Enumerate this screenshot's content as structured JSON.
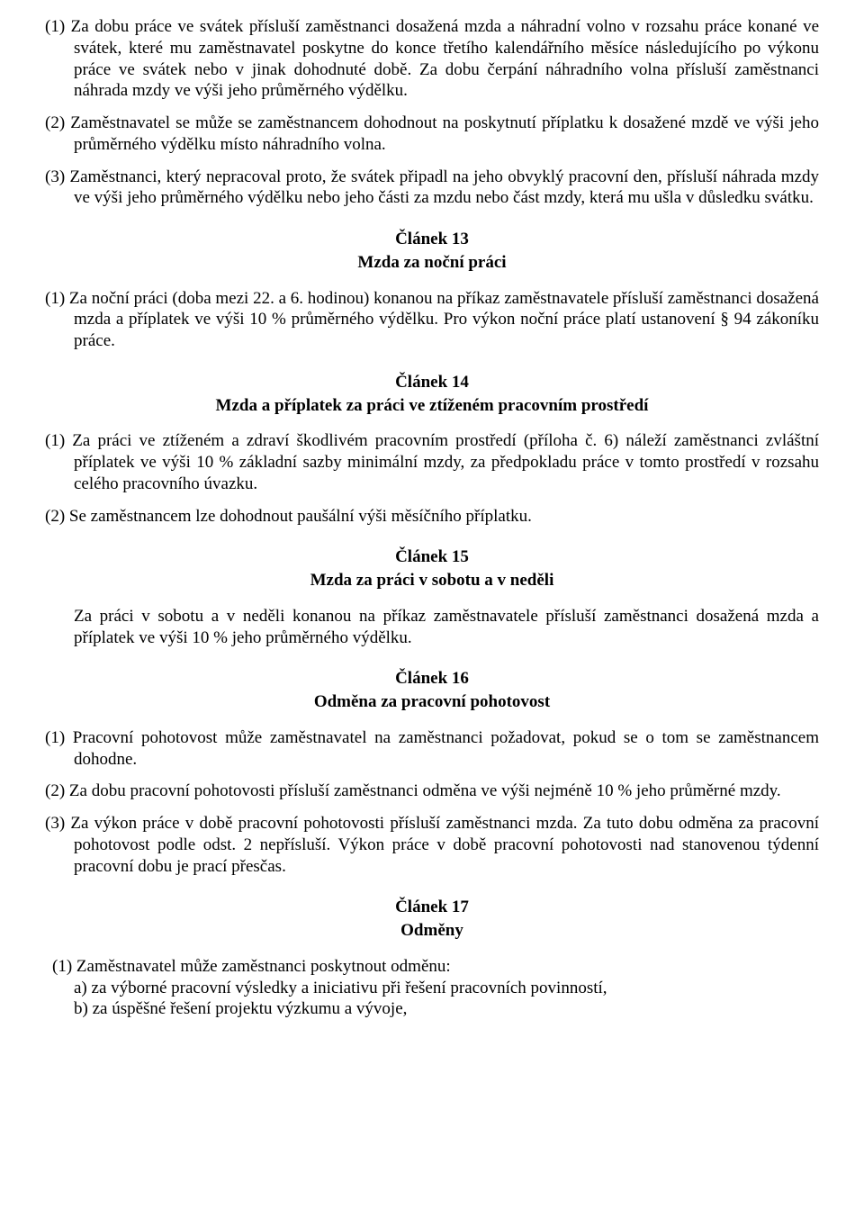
{
  "p1": "(1) Za dobu práce ve svátek přísluší zaměstnanci dosažená mzda a náhradní volno v rozsahu práce konané ve svátek, které mu zaměstnavatel poskytne do konce třetího kalendářního měsíce následujícího po výkonu práce ve svátek nebo v jinak dohodnuté době. Za dobu čerpání náhradního volna přísluší zaměstnanci náhrada mzdy ve výši jeho průměrného výdělku.",
  "p2": "(2) Zaměstnavatel se může se zaměstnancem dohodnout na poskytnutí příplatku k dosažené mzdě ve výši jeho průměrného výdělku místo náhradního volna.",
  "p3": "(3) Zaměstnanci, který nepracoval proto, že svátek připadl na jeho obvyklý pracovní den, přísluší náhrada mzdy ve výši jeho průměrného výdělku nebo jeho části za mzdu nebo část mzdy, která mu ušla v důsledku svátku.",
  "art13": {
    "heading": "Článek  13",
    "subtitle": "Mzda za noční práci"
  },
  "p13_1": "(1) Za noční práci (doba mezi 22. a 6. hodinou) konanou na příkaz zaměstnavatele přísluší zaměstnanci dosažená mzda a příplatek ve výši 10 % průměrného výdělku. Pro výkon noční práce platí ustanovení  § 94 zákoníku práce.",
  "art14": {
    "heading": "Článek  14",
    "subtitle": "Mzda a příplatek za práci ve ztíženém pracovním prostředí"
  },
  "p14_1": "(1)  Za práci ve ztíženém a zdraví škodlivém pracovním prostředí (příloha č. 6) náleží zaměstnanci zvláštní příplatek ve výši 10 % základní sazby minimální mzdy, za předpokladu práce v tomto prostředí v rozsahu celého pracovního úvazku.",
  "p14_2": "(2)  Se zaměstnancem lze dohodnout paušální výši měsíčního příplatku.",
  "art15": {
    "heading": "Článek  15",
    "subtitle": "Mzda za práci v sobotu a v neděli"
  },
  "p15": "Za práci v sobotu a v neděli konanou na příkaz zaměstnavatele přísluší zaměstnanci dosažená mzda a příplatek ve výši 10 % jeho průměrného výdělku.",
  "art16": {
    "heading": "Článek  16",
    "subtitle": "Odměna za pracovní pohotovost"
  },
  "p16_1": "(1) Pracovní pohotovost může zaměstnavatel na zaměstnanci požadovat, pokud se o tom se zaměstnancem dohodne.",
  "p16_2": "(2) Za dobu pracovní pohotovosti přísluší zaměstnanci odměna ve výši nejméně 10 % jeho průměrné mzdy.",
  "p16_3": "(3) Za výkon práce v době pracovní pohotovosti přísluší zaměstnanci mzda. Za tuto dobu odměna za pracovní pohotovost podle odst. 2 nepřísluší. Výkon práce v době pracovní pohotovosti nad stanovenou týdenní pracovní dobu je prací přesčas.",
  "art17": {
    "heading": "Článek  17",
    "subtitle": "Odměny"
  },
  "p17_intro": " (1) Zaměstnavatel může zaměstnanci poskytnout odměnu:",
  "p17_a": "a)  za výborné pracovní výsledky a iniciativu při řešení pracovních povinností,",
  "p17_b": "b)  za úspěšné řešení projektu výzkumu a vývoje,"
}
